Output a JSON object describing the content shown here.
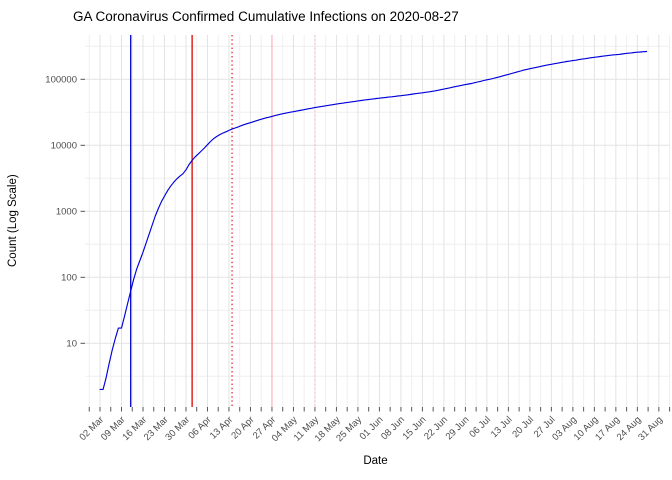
{
  "title": "GA Coronavirus Confirmed Cumulative Infections on 2020-08-27",
  "x_axis": {
    "label": "Date",
    "tick_labels": [
      "02 Mar",
      "09 Mar",
      "16 Mar",
      "23 Mar",
      "30 Mar",
      "06 Apr",
      "13 Apr",
      "20 Apr",
      "27 Apr",
      "04 May",
      "11 May",
      "18 May",
      "25 May",
      "01 Jun",
      "08 Jun",
      "15 Jun",
      "22 Jun",
      "29 Jun",
      "06 Jul",
      "13 Jul",
      "20 Jul",
      "27 Jul",
      "03 Aug",
      "10 Aug",
      "17 Aug",
      "24 Aug",
      "31 Aug"
    ]
  },
  "y_axis": {
    "label": "Count (Log Scale)",
    "tick_labels": [
      "10",
      "100",
      "1000",
      "10000",
      "100000"
    ]
  },
  "colors": {
    "series_line": "#0000dd",
    "vline_blue": "#0000cc",
    "vline_red": "#dd0000",
    "vline_pink": "#ffb6c1",
    "grid_major": "#e3e3e3",
    "grid_minor": "#efefef",
    "tick_text": "#4d4d4d",
    "tick_mark": "#555555"
  },
  "chart_data": {
    "type": "line",
    "title": "GA Coronavirus Confirmed Cumulative Infections on 2020-08-27",
    "xlabel": "Date",
    "ylabel": "Count (Log Scale)",
    "y_scale": "log10",
    "ylim": [
      1,
      470000
    ],
    "y_ticks": [
      10,
      100,
      1000,
      10000,
      100000
    ],
    "grid": true,
    "legend": false,
    "start_date": "2020-03-02",
    "end_date": "2020-08-27",
    "frequency": "daily",
    "x_tick_labels": [
      "02 Mar",
      "09 Mar",
      "16 Mar",
      "23 Mar",
      "30 Mar",
      "06 Apr",
      "13 Apr",
      "20 Apr",
      "27 Apr",
      "04 May",
      "11 May",
      "18 May",
      "25 May",
      "01 Jun",
      "08 Jun",
      "15 Jun",
      "22 Jun",
      "29 Jun",
      "06 Jul",
      "13 Jul",
      "20 Jul",
      "27 Jul",
      "03 Aug",
      "10 Aug",
      "17 Aug",
      "24 Aug",
      "31 Aug"
    ],
    "series": [
      {
        "name": "cumulative_confirmed_infections",
        "color": "#0000dd",
        "values": [
          2,
          2,
          3,
          5,
          8,
          12,
          17,
          17,
          26,
          40,
          62,
          95,
          135,
          180,
          240,
          330,
          450,
          620,
          850,
          1100,
          1400,
          1700,
          2050,
          2400,
          2750,
          3100,
          3400,
          3700,
          4250,
          5100,
          5900,
          6700,
          7400,
          8200,
          9100,
          10200,
          11400,
          12600,
          13600,
          14500,
          15300,
          16000,
          16800,
          17600,
          18300,
          19000,
          19800,
          20600,
          21300,
          22000,
          22800,
          23600,
          24400,
          25200,
          26000,
          26700,
          27400,
          28200,
          29000,
          29700,
          30400,
          31100,
          31700,
          32300,
          33000,
          33700,
          34400,
          35100,
          35800,
          36500,
          37200,
          37900,
          38600,
          39300,
          40000,
          40700,
          41400,
          42100,
          42800,
          43500,
          44200,
          44900,
          45600,
          46300,
          47000,
          47700,
          48400,
          49100,
          49800,
          50500,
          51200,
          51800,
          52400,
          53000,
          53700,
          54400,
          55100,
          55800,
          56500,
          57300,
          58100,
          58900,
          59800,
          60700,
          61600,
          62500,
          63500,
          64500,
          65600,
          66800,
          68100,
          69500,
          71000,
          72700,
          74400,
          76200,
          78000,
          79800,
          81500,
          83200,
          84900,
          86500,
          88700,
          91000,
          93400,
          95800,
          98100,
          100400,
          103000,
          105800,
          108800,
          112000,
          115300,
          118700,
          122300,
          126000,
          129800,
          133700,
          137700,
          141300,
          144600,
          147900,
          151300,
          154900,
          158600,
          162200,
          165700,
          168800,
          172300,
          175500,
          178900,
          182400,
          185800,
          189000,
          192000,
          195000,
          198500,
          202000,
          205500,
          209000,
          212500,
          215500,
          218500,
          221500,
          225000,
          228000,
          231000,
          234000,
          236000,
          238500,
          242000,
          245500,
          248500,
          251500,
          254500,
          257000,
          259500,
          261500,
          263500
        ]
      }
    ],
    "vlines": [
      {
        "date": "2020-03-12",
        "color": "#0000cc",
        "style": "solid"
      },
      {
        "date": "2020-04-01",
        "color": "#dd0000",
        "style": "solid"
      },
      {
        "date": "2020-04-14",
        "color": "#dd0000",
        "style": "dotted"
      },
      {
        "date": "2020-04-27",
        "color": "#ffb6c1",
        "style": "solid"
      },
      {
        "date": "2020-05-11",
        "color": "#ffb6c1",
        "style": "dotted"
      }
    ]
  }
}
